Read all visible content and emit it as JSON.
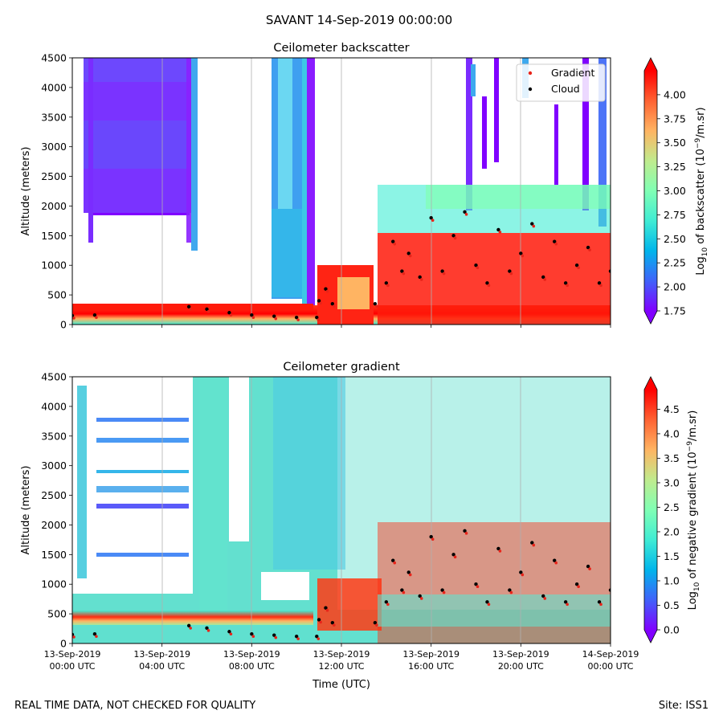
{
  "page": {
    "title": "SAVANT 14-Sep-2019 00:00:00",
    "footer_left": "REAL TIME DATA, NOT CHECKED FOR QUALITY",
    "footer_right": "Site: ISS1",
    "x_axis_label": "Time (UTC)"
  },
  "chart_data": [
    {
      "type": "heatmap",
      "title": "Ceilometer backscatter",
      "ylabel": "Altitude (meters)",
      "ylim": [
        0,
        4500
      ],
      "yticks": [
        "0",
        "500",
        "1000",
        "1500",
        "2000",
        "2500",
        "3000",
        "3500",
        "4000",
        "4500"
      ],
      "x_hours_range": [
        0,
        24
      ],
      "x_ticks_shown": false,
      "grid": "vertical",
      "legend_position": "top-right",
      "legend": [
        {
          "name": "Gradient",
          "color": "#e8241a",
          "marker": "dot"
        },
        {
          "name": "Cloud",
          "color": "#000000",
          "marker": "dot"
        }
      ],
      "colorbar": {
        "label": "Log10 of backscatter (10^-9/m.sr)",
        "label_parts": [
          "Log",
          "10",
          " of backscatter (10",
          "−9",
          "/m.sr)"
        ],
        "range": [
          1.75,
          4.25
        ],
        "ticks": [
          "1.75",
          "2.00",
          "2.25",
          "2.50",
          "2.75",
          "3.00",
          "3.25",
          "3.50",
          "3.75",
          "4.00"
        ],
        "colormap": "rainbow",
        "extend": "both"
      },
      "cloud_heights_m": [
        {
          "hour": 0.0,
          "value": 150
        },
        {
          "hour": 1.0,
          "value": 160
        },
        {
          "hour": 5.2,
          "value": 300
        },
        {
          "hour": 6.0,
          "value": 260
        },
        {
          "hour": 7.0,
          "value": 200
        },
        {
          "hour": 8.0,
          "value": 160
        },
        {
          "hour": 9.0,
          "value": 140
        },
        {
          "hour": 10.0,
          "value": 120
        },
        {
          "hour": 10.9,
          "value": 120
        },
        {
          "hour": 11.0,
          "value": 400
        },
        {
          "hour": 11.3,
          "value": 600
        },
        {
          "hour": 11.6,
          "value": 350
        },
        {
          "hour": 13.5,
          "value": 350
        },
        {
          "hour": 14.0,
          "value": 700
        },
        {
          "hour": 14.3,
          "value": 1400
        },
        {
          "hour": 14.7,
          "value": 900
        },
        {
          "hour": 15.0,
          "value": 1200
        },
        {
          "hour": 15.5,
          "value": 800
        },
        {
          "hour": 16.0,
          "value": 1800
        },
        {
          "hour": 16.5,
          "value": 900
        },
        {
          "hour": 17.0,
          "value": 1500
        },
        {
          "hour": 17.5,
          "value": 1900
        },
        {
          "hour": 18.0,
          "value": 1000
        },
        {
          "hour": 18.5,
          "value": 700
        },
        {
          "hour": 19.0,
          "value": 1600
        },
        {
          "hour": 19.5,
          "value": 900
        },
        {
          "hour": 20.0,
          "value": 1200
        },
        {
          "hour": 20.5,
          "value": 1700
        },
        {
          "hour": 21.0,
          "value": 800
        },
        {
          "hour": 21.5,
          "value": 1400
        },
        {
          "hour": 22.0,
          "value": 700
        },
        {
          "hour": 22.5,
          "value": 1000
        },
        {
          "hour": 23.0,
          "value": 1300
        },
        {
          "hour": 23.5,
          "value": 700
        },
        {
          "hour": 24.0,
          "value": 900
        }
      ]
    },
    {
      "type": "heatmap",
      "title": "Ceilometer gradient",
      "ylabel": "Altitude (meters)",
      "xlabel": "Time (UTC)",
      "ylim": [
        0,
        4500
      ],
      "yticks": [
        "0",
        "500",
        "1000",
        "1500",
        "2000",
        "2500",
        "3000",
        "3500",
        "4000",
        "4500"
      ],
      "x_hours_range": [
        0,
        24
      ],
      "xticks": [
        {
          "date": "13-Sep-2019",
          "time": "00:00 UTC"
        },
        {
          "date": "13-Sep-2019",
          "time": "04:00 UTC"
        },
        {
          "date": "13-Sep-2019",
          "time": "08:00 UTC"
        },
        {
          "date": "13-Sep-2019",
          "time": "12:00 UTC"
        },
        {
          "date": "13-Sep-2019",
          "time": "16:00 UTC"
        },
        {
          "date": "13-Sep-2019",
          "time": "20:00 UTC"
        },
        {
          "date": "14-Sep-2019",
          "time": "00:00 UTC"
        }
      ],
      "grid": "vertical",
      "colorbar": {
        "label": "Log10 of negative gradient (10^-9/m.sr)",
        "label_parts": [
          "Log",
          "10",
          " of negative gradient (10",
          "−9",
          "/m.sr)"
        ],
        "range": [
          0.0,
          4.9
        ],
        "ticks": [
          "0.0",
          "0.5",
          "1.0",
          "1.5",
          "2.0",
          "2.5",
          "3.0",
          "3.5",
          "4.0",
          "4.5"
        ],
        "colormap": "rainbow",
        "extend": "both"
      }
    }
  ]
}
